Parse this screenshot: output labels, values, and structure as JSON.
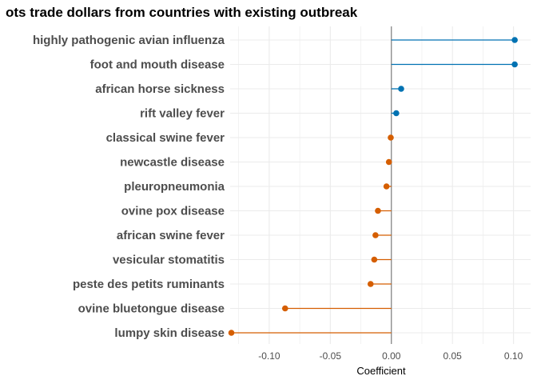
{
  "chart_data": {
    "type": "lollipop",
    "title": "ots trade dollars from countries with existing outbreak",
    "xlabel": "Coefficient",
    "ylabel": "",
    "xlim": [
      -0.132,
      0.114
    ],
    "x_ticks": [
      -0.1,
      -0.05,
      0.0,
      0.05,
      0.1
    ],
    "x_tick_labels": [
      "-0.10",
      "-0.05",
      "0.00",
      "0.05",
      "0.10"
    ],
    "grid": true,
    "zero_line": true,
    "colors": {
      "positive": "#0072b2",
      "negative": "#d55e00",
      "zero_line": "#7f7f7f",
      "grid": "#ebebeb"
    },
    "categories": [
      "highly pathogenic avian influenza",
      "foot and mouth disease",
      "african horse sickness",
      "rift valley fever",
      "classical swine fever",
      "newcastle disease",
      "pleuropneumonia",
      "ovine pox disease",
      "african swine fever",
      "vesicular stomatitis",
      "peste des petits ruminants",
      "ovine bluetongue disease",
      "lumpy skin disease"
    ],
    "values": [
      0.101,
      0.101,
      0.008,
      0.004,
      -0.0005,
      -0.002,
      -0.004,
      -0.011,
      -0.013,
      -0.014,
      -0.017,
      -0.087,
      -0.131
    ]
  }
}
